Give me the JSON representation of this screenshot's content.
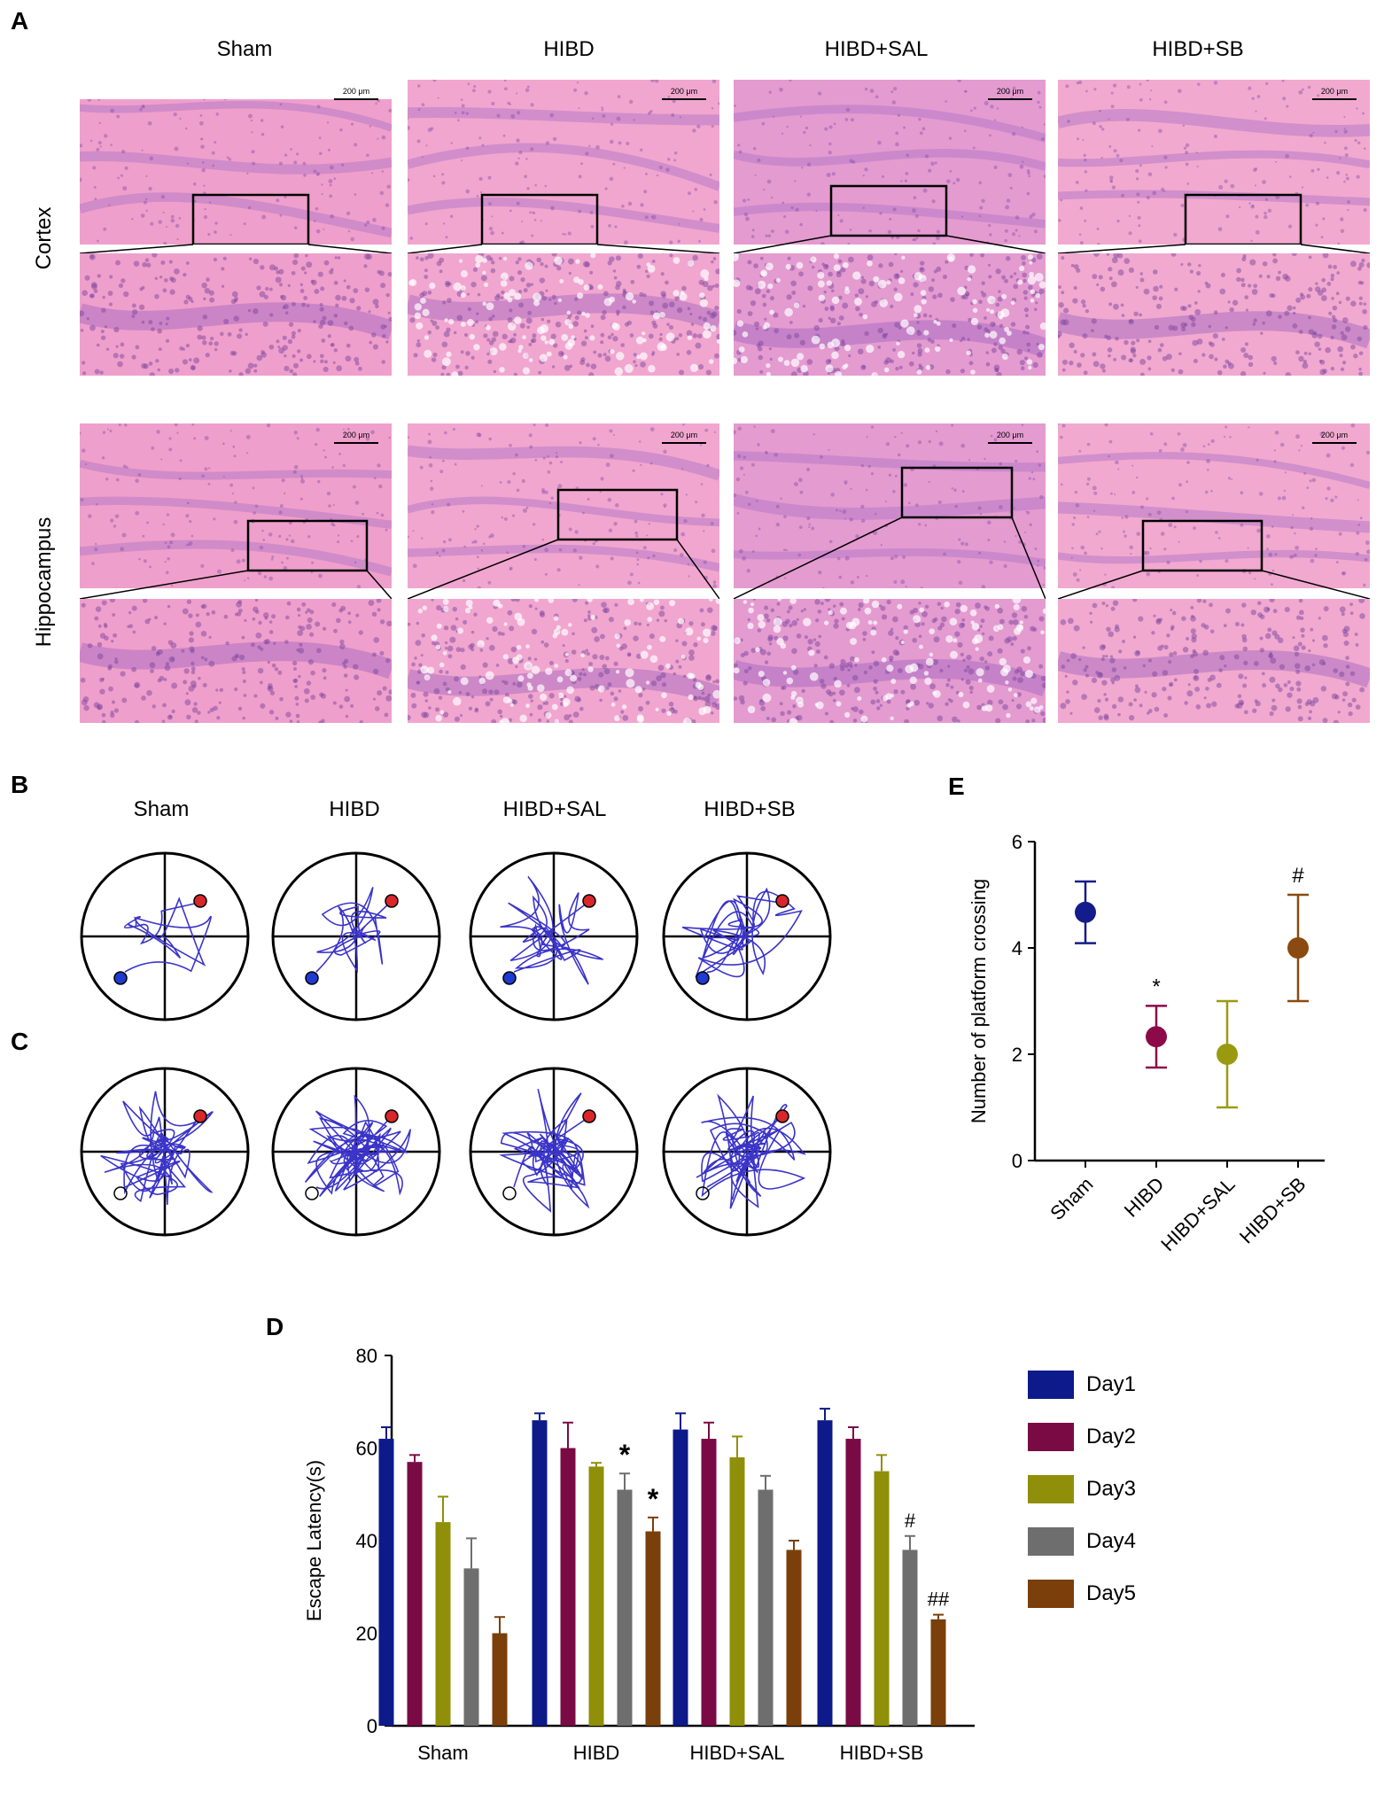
{
  "panel_letters": {
    "a": "A",
    "b": "B",
    "c": "C",
    "d": "D",
    "e": "E"
  },
  "histology": {
    "groups": [
      "Sham",
      "HIBD",
      "HIBD+SAL",
      "HIBD+SB"
    ],
    "rows": [
      "Cortex",
      "Hippocampus"
    ],
    "scale_bar": "200 μm"
  },
  "tracks": {
    "groups": [
      "Sham",
      "HIBD",
      "HIBD+SAL",
      "HIBD+SB"
    ]
  },
  "chart_data": [
    {
      "id": "E",
      "type": "scatter",
      "title": "",
      "xlabel": "",
      "ylabel": "Number of platform crossing",
      "categories": [
        "Sham",
        "HIBD",
        "HIBD+SAL",
        "HIBD+SB"
      ],
      "values": [
        4.67,
        2.33,
        2.0,
        4.0
      ],
      "errors": [
        0.58,
        0.58,
        1.0,
        1.0
      ],
      "colors": [
        "#141c8c",
        "#8c0a4a",
        "#9a9a10",
        "#8a4a10"
      ],
      "annotations": [
        "",
        "*",
        "",
        "#"
      ],
      "ylim": [
        0,
        6
      ],
      "yticks": [
        0,
        2,
        4,
        6
      ],
      "grid": false
    },
    {
      "id": "D",
      "type": "bar",
      "title": "",
      "xlabel": "",
      "ylabel": "Escape Latency(s)",
      "categories": [
        "Sham",
        "HIBD",
        "HIBD+SAL",
        "HIBD+SB"
      ],
      "series": [
        {
          "name": "Day1",
          "color": "#0c1a8a",
          "values": [
            62,
            66,
            64,
            66
          ],
          "errors": [
            2.5,
            1.5,
            3.5,
            2.5
          ]
        },
        {
          "name": "Day2",
          "color": "#7a0a44",
          "values": [
            57,
            60,
            62,
            62
          ],
          "errors": [
            1.5,
            5.5,
            3.5,
            2.5
          ]
        },
        {
          "name": "Day3",
          "color": "#8f8f0a",
          "values": [
            44,
            56,
            58,
            55
          ],
          "errors": [
            5.5,
            0.8,
            4.5,
            3.5
          ]
        },
        {
          "name": "Day4",
          "color": "#6e6e6e",
          "values": [
            34,
            51,
            51,
            38
          ],
          "errors": [
            6.5,
            3.5,
            3.0,
            3.0
          ]
        },
        {
          "name": "Day5",
          "color": "#7a3f0a",
          "values": [
            20,
            42,
            38,
            23
          ],
          "errors": [
            3.5,
            3.0,
            2.0,
            1.0
          ]
        }
      ],
      "annotations": [
        {
          "group": 1,
          "series": 3,
          "text": "*"
        },
        {
          "group": 1,
          "series": 4,
          "text": "*"
        },
        {
          "group": 3,
          "series": 3,
          "text": "#"
        },
        {
          "group": 3,
          "series": 4,
          "text": "##"
        }
      ],
      "ylim": [
        0,
        80
      ],
      "yticks": [
        0,
        20,
        40,
        60,
        80
      ],
      "legend_position": "right",
      "grid": false
    }
  ]
}
